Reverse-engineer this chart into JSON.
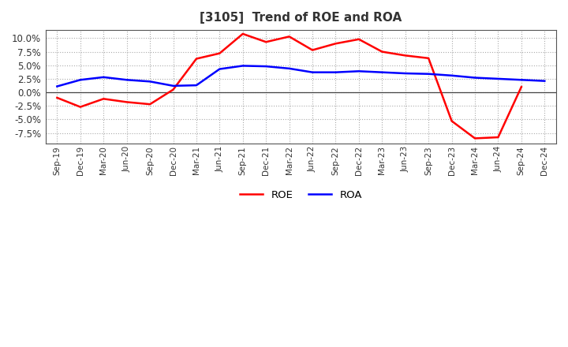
{
  "title": "[3105]  Trend of ROE and ROA",
  "x_labels": [
    "Sep-19",
    "Dec-19",
    "Mar-20",
    "Jun-20",
    "Sep-20",
    "Dec-20",
    "Mar-21",
    "Jun-21",
    "Sep-21",
    "Dec-21",
    "Mar-22",
    "Jun-22",
    "Sep-22",
    "Dec-22",
    "Mar-23",
    "Jun-23",
    "Sep-23",
    "Dec-23",
    "Mar-24",
    "Jun-24",
    "Sep-24",
    "Dec-24"
  ],
  "roe": [
    -1.0,
    -2.7,
    -1.2,
    -1.8,
    -2.2,
    0.5,
    6.2,
    7.2,
    10.8,
    9.3,
    10.3,
    7.8,
    9.0,
    9.8,
    7.5,
    6.8,
    6.3,
    -5.3,
    -8.5,
    -8.3,
    1.0,
    null
  ],
  "roa": [
    1.1,
    2.3,
    2.8,
    2.3,
    2.0,
    1.2,
    1.3,
    4.3,
    4.9,
    4.8,
    4.4,
    3.7,
    3.7,
    3.9,
    3.7,
    3.5,
    3.4,
    3.1,
    2.7,
    2.5,
    2.3,
    2.1
  ],
  "roe_color": "#FF0000",
  "roa_color": "#0000FF",
  "background_color": "#FFFFFF",
  "plot_bg_color": "#FFFFFF",
  "ylim": [
    -9.5,
    11.5
  ],
  "yticks": [
    -7.5,
    -5.0,
    -2.5,
    0.0,
    2.5,
    5.0,
    7.5,
    10.0
  ],
  "grid_color": "#AAAAAA",
  "line_width": 1.8,
  "title_color": "#333333",
  "tick_color": "#333333"
}
